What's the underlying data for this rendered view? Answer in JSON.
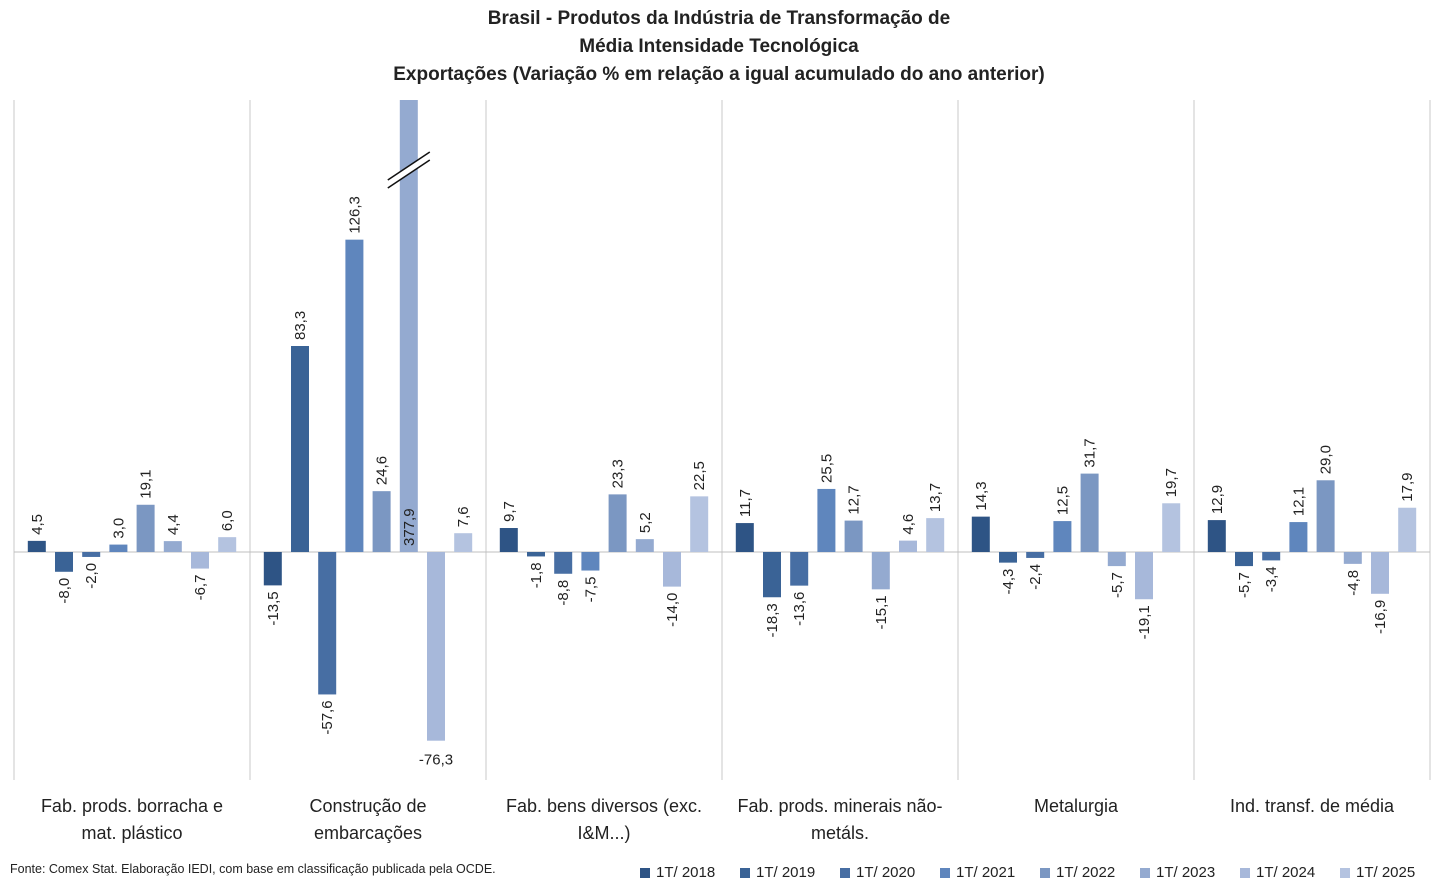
{
  "chart_data": {
    "type": "bar",
    "title": [
      "Brasil - Produtos da Indústria de Transformação de",
      "Média Intensidade Tecnológica",
      "Exportações (Variação % em relação a igual acumulado do ano anterior)"
    ],
    "categories": [
      [
        "Fab. prods. borracha e",
        "mat. plástico"
      ],
      [
        "Construção de",
        "embarcações"
      ],
      [
        "Fab. bens diversos (exc.",
        "I&M...)"
      ],
      [
        "Fab. prods. minerais não-",
        "metáls."
      ],
      [
        "Metalurgia"
      ],
      [
        "Ind. transf. de média"
      ]
    ],
    "series": [
      {
        "name": "1T/ 2018",
        "color": "#2e5485",
        "values": [
          4.5,
          -13.5,
          9.7,
          11.7,
          14.3,
          12.9
        ]
      },
      {
        "name": "1T/ 2019",
        "color": "#3a6396",
        "values": [
          -8.0,
          83.3,
          -1.8,
          -18.3,
          -4.3,
          -5.7
        ]
      },
      {
        "name": "1T/ 2020",
        "color": "#476ea3",
        "values": [
          -2.0,
          -57.6,
          -8.8,
          -13.6,
          -2.4,
          -3.4
        ]
      },
      {
        "name": "1T/ 2021",
        "color": "#5f86bd",
        "values": [
          3.0,
          126.3,
          -7.5,
          25.5,
          12.5,
          12.1
        ]
      },
      {
        "name": "1T/ 2022",
        "color": "#7b97c2",
        "values": [
          19.1,
          24.6,
          23.3,
          12.7,
          31.7,
          29.0
        ]
      },
      {
        "name": "1T/ 2023",
        "color": "#94aad0",
        "values": [
          4.4,
          377.9,
          5.2,
          -15.1,
          -5.7,
          -4.8
        ]
      },
      {
        "name": "1T/ 2024",
        "color": "#a7b8da",
        "values": [
          -6.7,
          -76.3,
          -14.0,
          4.6,
          -19.1,
          -16.9
        ]
      },
      {
        "name": "1T/ 2025",
        "color": "#b4c3e0",
        "values": [
          6.0,
          7.6,
          22.5,
          13.7,
          19.7,
          17.9
        ]
      }
    ],
    "value_labels": [
      [
        "4,5",
        "-8,0",
        "-2,0",
        "3,0",
        "19,1",
        "4,4",
        "-6,7",
        "6,0"
      ],
      [
        "-13,5",
        "83,3",
        "-57,6",
        "126,3",
        "24,6",
        "377,9",
        "-76,3",
        "7,6"
      ],
      [
        "9,7",
        "-1,8",
        "-8,8",
        "-7,5",
        "23,3",
        "5,2",
        "-14,0",
        "22,5"
      ],
      [
        "11,7",
        "-18,3",
        "-13,6",
        "25,5",
        "12,7",
        "-15,1",
        "4,6",
        "13,7"
      ],
      [
        "14,3",
        "-4,3",
        "-2,4",
        "12,5",
        "31,7",
        "-5,7",
        "-19,1",
        "19,7"
      ],
      [
        "12,9",
        "-5,7",
        "-3,4",
        "12,1",
        "29,0",
        "-4,8",
        "-16,9",
        "17,9"
      ]
    ],
    "axis_break": {
      "category": 1,
      "series": 5
    },
    "ylim": [
      -90,
      175
    ],
    "legend": "bottom-right",
    "grid": false
  },
  "source": "Fonte: Comex Stat. Elaboração IEDI, com base em classificação publicada pela OCDE."
}
